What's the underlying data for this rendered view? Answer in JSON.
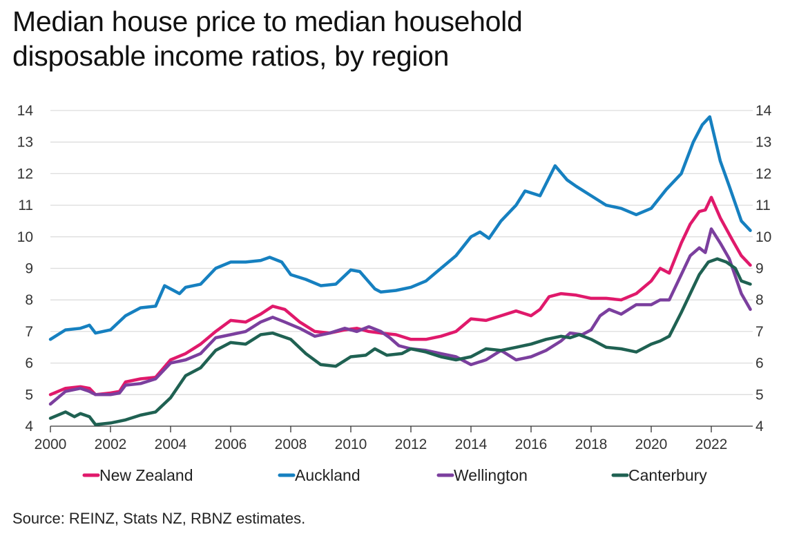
{
  "chart_data": {
    "type": "line",
    "title": "Median house price to median household disposable income ratios, by region",
    "title_lines": [
      "Median house price to median household",
      "disposable income ratios, by region"
    ],
    "xlabel": "",
    "ylabel": "",
    "xlim": [
      2000,
      2023.4
    ],
    "ylim": [
      4,
      14
    ],
    "x_ticks": [
      2000,
      2002,
      2004,
      2006,
      2008,
      2010,
      2012,
      2014,
      2016,
      2018,
      2020,
      2022
    ],
    "x_tick_labels": [
      "2000",
      "2002",
      "2004",
      "2006",
      "2008",
      "2010",
      "2012",
      "2014",
      "2016",
      "2018",
      "2020",
      "2022"
    ],
    "y_ticks": [
      4,
      5,
      6,
      7,
      8,
      9,
      10,
      11,
      12,
      13,
      14
    ],
    "y_tick_labels": [
      "4",
      "5",
      "6",
      "7",
      "8",
      "9",
      "10",
      "11",
      "12",
      "13",
      "14"
    ],
    "y_axis_sides": "left-and-right",
    "grid": true,
    "legend_position": "bottom",
    "source": "Source: REINZ, Stats NZ, RBNZ estimates.",
    "series": [
      {
        "name": "New Zealand",
        "color": "#e0196b",
        "x": [
          2000,
          2000.5,
          2001,
          2001.3,
          2001.5,
          2002,
          2002.3,
          2002.5,
          2003,
          2003.5,
          2004,
          2004.5,
          2005,
          2005.5,
          2006,
          2006.5,
          2007,
          2007.4,
          2007.8,
          2008.3,
          2008.8,
          2009.3,
          2009.8,
          2010.2,
          2010.6,
          2011,
          2011.5,
          2012,
          2012.5,
          2013,
          2013.5,
          2014,
          2014.5,
          2015,
          2015.5,
          2016,
          2016.3,
          2016.6,
          2017,
          2017.5,
          2018,
          2018.5,
          2019,
          2019.5,
          2020,
          2020.3,
          2020.6,
          2021,
          2021.3,
          2021.6,
          2021.8,
          2022,
          2022.3,
          2022.7,
          2023,
          2023.3
        ],
        "values": [
          5.0,
          5.2,
          5.25,
          5.2,
          5.0,
          5.05,
          5.1,
          5.4,
          5.5,
          5.55,
          6.1,
          6.3,
          6.6,
          7.0,
          7.35,
          7.3,
          7.55,
          7.8,
          7.7,
          7.3,
          7.0,
          6.95,
          7.05,
          7.1,
          7.0,
          6.95,
          6.9,
          6.75,
          6.75,
          6.85,
          7.0,
          7.4,
          7.35,
          7.5,
          7.65,
          7.5,
          7.7,
          8.1,
          8.2,
          8.15,
          8.05,
          8.05,
          8.0,
          8.2,
          8.6,
          9.0,
          8.85,
          9.8,
          10.4,
          10.8,
          10.85,
          11.25,
          10.6,
          9.9,
          9.4,
          9.1
        ]
      },
      {
        "name": "Auckland",
        "color": "#1680c0",
        "x": [
          2000,
          2000.5,
          2001,
          2001.3,
          2001.5,
          2002,
          2002.5,
          2003,
          2003.5,
          2003.8,
          2004.3,
          2004.5,
          2005,
          2005.5,
          2006,
          2006.5,
          2007,
          2007.3,
          2007.7,
          2008,
          2008.5,
          2009,
          2009.5,
          2010,
          2010.3,
          2010.8,
          2011,
          2011.5,
          2012,
          2012.5,
          2013,
          2013.5,
          2014,
          2014.3,
          2014.6,
          2015,
          2015.5,
          2015.8,
          2016.3,
          2016.8,
          2017.2,
          2017.5,
          2018,
          2018.5,
          2019,
          2019.5,
          2020,
          2020.5,
          2021,
          2021.4,
          2021.7,
          2021.95,
          2022.3,
          2022.6,
          2023,
          2023.3
        ],
        "values": [
          6.75,
          7.05,
          7.1,
          7.2,
          6.95,
          7.05,
          7.5,
          7.75,
          7.8,
          8.45,
          8.2,
          8.4,
          8.5,
          9.0,
          9.2,
          9.2,
          9.25,
          9.35,
          9.2,
          8.8,
          8.65,
          8.45,
          8.5,
          8.95,
          8.9,
          8.35,
          8.25,
          8.3,
          8.4,
          8.6,
          9.0,
          9.4,
          10.0,
          10.15,
          9.95,
          10.5,
          11.0,
          11.45,
          11.3,
          12.25,
          11.8,
          11.6,
          11.3,
          11.0,
          10.9,
          10.7,
          10.9,
          11.5,
          12.0,
          13.0,
          13.55,
          13.8,
          12.4,
          11.6,
          10.5,
          10.2
        ]
      },
      {
        "name": "Wellington",
        "color": "#7b3f9e",
        "x": [
          2000,
          2000.5,
          2001,
          2001.3,
          2001.5,
          2002,
          2002.3,
          2002.5,
          2003,
          2003.5,
          2004,
          2004.5,
          2005,
          2005.5,
          2006,
          2006.5,
          2007,
          2007.4,
          2007.8,
          2008.3,
          2008.8,
          2009.3,
          2009.8,
          2010.2,
          2010.6,
          2011,
          2011.3,
          2011.6,
          2012,
          2012.5,
          2013,
          2013.5,
          2014,
          2014.5,
          2015,
          2015.5,
          2016,
          2016.5,
          2017,
          2017.3,
          2017.7,
          2018,
          2018.3,
          2018.6,
          2019,
          2019.5,
          2020,
          2020.3,
          2020.6,
          2021,
          2021.3,
          2021.6,
          2021.8,
          2022,
          2022.3,
          2022.6,
          2023,
          2023.3
        ],
        "values": [
          4.7,
          5.1,
          5.2,
          5.1,
          5.0,
          5.0,
          5.05,
          5.3,
          5.35,
          5.5,
          6.0,
          6.1,
          6.3,
          6.8,
          6.9,
          7.0,
          7.3,
          7.45,
          7.3,
          7.1,
          6.85,
          6.95,
          7.1,
          7.0,
          7.15,
          7.0,
          6.8,
          6.55,
          6.45,
          6.4,
          6.3,
          6.2,
          5.95,
          6.1,
          6.4,
          6.1,
          6.2,
          6.4,
          6.7,
          6.95,
          6.9,
          7.05,
          7.5,
          7.7,
          7.55,
          7.85,
          7.85,
          8.0,
          8.0,
          8.8,
          9.4,
          9.65,
          9.5,
          10.25,
          9.8,
          9.3,
          8.2,
          7.7
        ]
      },
      {
        "name": "Canterbury",
        "color": "#1f6152",
        "x": [
          2000,
          2000.5,
          2000.8,
          2001,
          2001.3,
          2001.5,
          2002,
          2002.5,
          2003,
          2003.5,
          2004,
          2004.5,
          2005,
          2005.5,
          2006,
          2006.5,
          2007,
          2007.4,
          2008,
          2008.5,
          2009,
          2009.5,
          2010,
          2010.5,
          2010.8,
          2011.2,
          2011.7,
          2012,
          2012.5,
          2013,
          2013.5,
          2014,
          2014.5,
          2015,
          2015.5,
          2016,
          2016.5,
          2017,
          2017.3,
          2017.6,
          2018,
          2018.5,
          2019,
          2019.5,
          2020,
          2020.3,
          2020.6,
          2021,
          2021.3,
          2021.6,
          2021.9,
          2022.2,
          2022.5,
          2022.8,
          2023,
          2023.3
        ],
        "values": [
          4.25,
          4.45,
          4.3,
          4.4,
          4.3,
          4.05,
          4.1,
          4.2,
          4.35,
          4.45,
          4.9,
          5.6,
          5.85,
          6.4,
          6.65,
          6.6,
          6.9,
          6.95,
          6.75,
          6.3,
          5.95,
          5.9,
          6.2,
          6.25,
          6.45,
          6.25,
          6.3,
          6.45,
          6.35,
          6.2,
          6.1,
          6.2,
          6.45,
          6.4,
          6.5,
          6.6,
          6.75,
          6.85,
          6.8,
          6.9,
          6.75,
          6.5,
          6.45,
          6.35,
          6.6,
          6.7,
          6.85,
          7.6,
          8.2,
          8.8,
          9.2,
          9.3,
          9.2,
          9.0,
          8.6,
          8.5
        ]
      }
    ]
  }
}
